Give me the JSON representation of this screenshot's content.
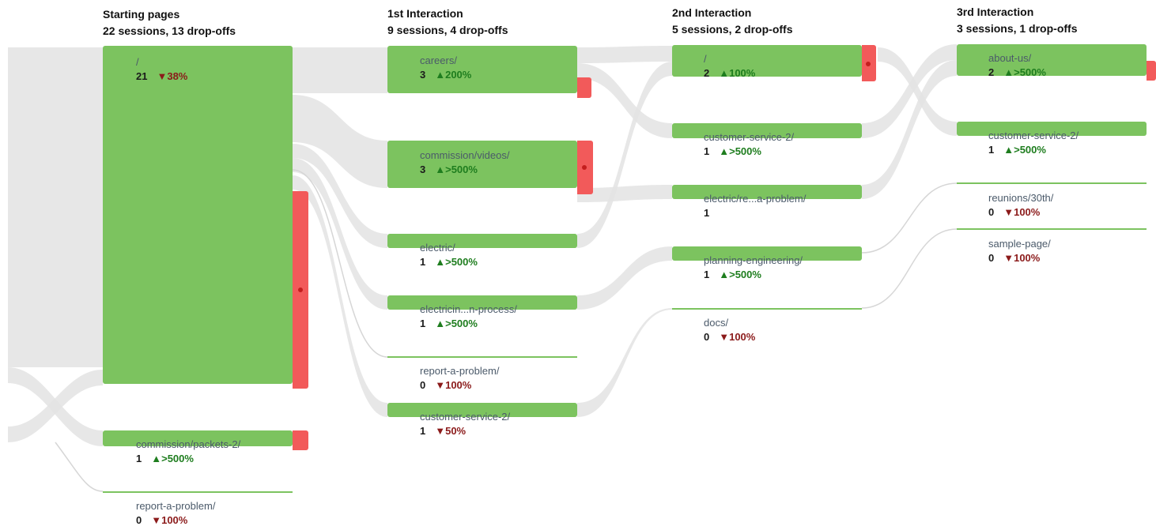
{
  "stages": [
    {
      "title": "Starting pages",
      "subtitle": "22 sessions, 13 drop-offs"
    },
    {
      "title": "1st Interaction",
      "subtitle": "9 sessions, 4 drop-offs"
    },
    {
      "title": "2nd Interaction",
      "subtitle": "5 sessions, 2 drop-offs"
    },
    {
      "title": "3rd Interaction",
      "subtitle": "3 sessions, 1 drop-offs"
    }
  ],
  "nodes": {
    "s0_root": {
      "path": "/",
      "count": "21",
      "change": "▼38%",
      "trend": "down"
    },
    "s0_packets": {
      "path": "commission/packets-2/",
      "count": "1",
      "change": "▲>500%",
      "trend": "up"
    },
    "s0_report": {
      "path": "report-a-problem/",
      "count": "0",
      "change": "▼100%",
      "trend": "down"
    },
    "s1_careers": {
      "path": "careers/",
      "count": "3",
      "change": "▲200%",
      "trend": "up"
    },
    "s1_videos": {
      "path": "commission/videos/",
      "count": "3",
      "change": "▲>500%",
      "trend": "up"
    },
    "s1_electric": {
      "path": "electric/",
      "count": "1",
      "change": "▲>500%",
      "trend": "up"
    },
    "s1_electricin": {
      "path": "electricin...n-process/",
      "count": "1",
      "change": "▲>500%",
      "trend": "up"
    },
    "s1_report": {
      "path": "report-a-problem/",
      "count": "0",
      "change": "▼100%",
      "trend": "down"
    },
    "s1_customer": {
      "path": "customer-service-2/",
      "count": "1",
      "change": "▼50%",
      "trend": "down"
    },
    "s2_root": {
      "path": "/",
      "count": "2",
      "change": "▲100%",
      "trend": "up"
    },
    "s2_customer": {
      "path": "customer-service-2/",
      "count": "1",
      "change": "▲>500%",
      "trend": "up"
    },
    "s2_electric": {
      "path": "electric/re...a-problem/",
      "count": "1",
      "change": "",
      "trend": "none"
    },
    "s2_planning": {
      "path": "planning-engineering/",
      "count": "1",
      "change": "▲>500%",
      "trend": "up"
    },
    "s2_docs": {
      "path": "docs/",
      "count": "0",
      "change": "▼100%",
      "trend": "down"
    },
    "s3_about": {
      "path": "about-us/",
      "count": "2",
      "change": "▲>500%",
      "trend": "up"
    },
    "s3_customer": {
      "path": "customer-service-2/",
      "count": "1",
      "change": "▲>500%",
      "trend": "up"
    },
    "s3_reunions": {
      "path": "reunions/30th/",
      "count": "0",
      "change": "▼100%",
      "trend": "down"
    },
    "s3_sample": {
      "path": "sample-page/",
      "count": "0",
      "change": "▼100%",
      "trend": "down"
    }
  },
  "colors": {
    "node": "#7cc35f",
    "dropoff": "#f25a5a",
    "up": "#1e7d1e",
    "down": "#8b1a1a",
    "flow": "#e3e3e3"
  }
}
